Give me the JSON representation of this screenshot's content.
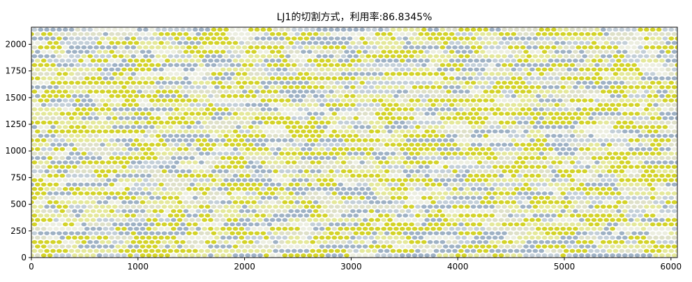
{
  "chart_data": {
    "type": "scatter",
    "title": "LJ1的切割方式，利用率:86.8345%",
    "xlabel": "",
    "ylabel": "",
    "xlim": [
      0,
      6060
    ],
    "ylim": [
      0,
      2160
    ],
    "x_ticks": [
      "0",
      "1000",
      "2000",
      "3000",
      "4000",
      "5000",
      "6000"
    ],
    "y_ticks": [
      "0",
      "250",
      "500",
      "750",
      "1000",
      "1250",
      "1500",
      "1750",
      "2000"
    ],
    "x_tick_values": [
      0,
      1000,
      2000,
      3000,
      4000,
      5000,
      6000
    ],
    "y_tick_values": [
      0,
      250,
      500,
      750,
      1000,
      1250,
      1500,
      1750,
      2000
    ],
    "grid": false,
    "legend": "none",
    "ellipse_pattern": {
      "x_pitch": 58,
      "y_pitch": 41.5,
      "row_offset": 29,
      "cell_width": 55,
      "cell_height": 40
    },
    "colors": [
      "#d3d327",
      "#9eb1c4",
      "#c3cfd8",
      "#e4e89a",
      "#dee0c8",
      "#eceee0"
    ]
  }
}
